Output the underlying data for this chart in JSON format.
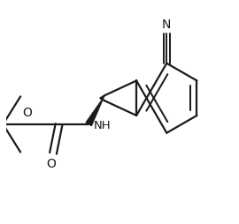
{
  "background_color": "#ffffff",
  "line_color": "#1a1a1a",
  "line_width": 1.6,
  "figsize": [
    2.7,
    2.54
  ],
  "dpi": 100,
  "xlim": [
    -3.5,
    3.0
  ],
  "ylim": [
    -3.2,
    3.2
  ]
}
